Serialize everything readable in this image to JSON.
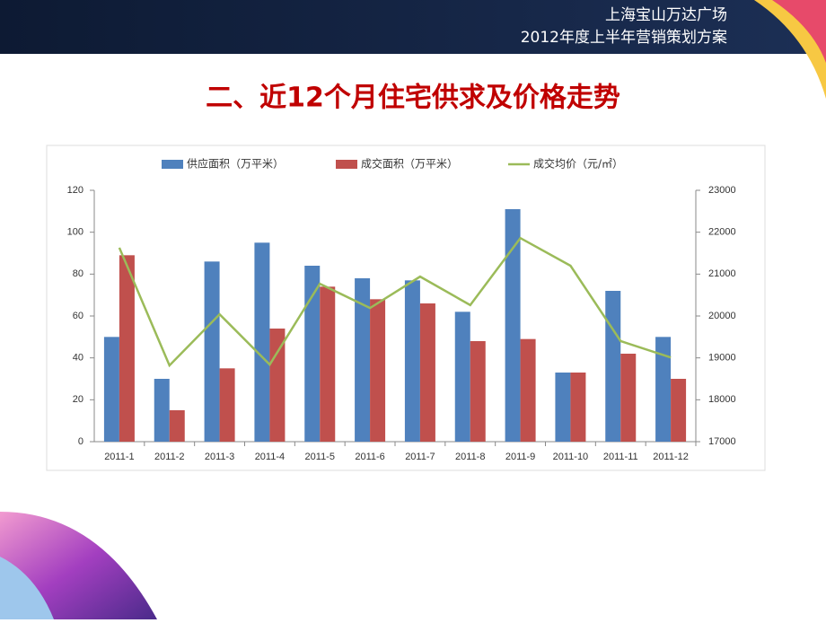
{
  "header": {
    "line1": "上海宝山万达广场",
    "line2": "2012年度上半年营销策划方案"
  },
  "title": "二、近12个月住宅供求及价格走势",
  "chart_data": {
    "type": "bar",
    "categories": [
      "2011-1",
      "2011-2",
      "2011-3",
      "2011-4",
      "2011-5",
      "2011-6",
      "2011-7",
      "2011-8",
      "2011-9",
      "2011-10",
      "2011-11",
      "2011-12"
    ],
    "series": [
      {
        "name": "供应面积（万平米）",
        "color": "#4f81bd",
        "values": [
          50,
          30,
          86,
          95,
          84,
          78,
          77,
          62,
          111,
          33,
          72,
          50
        ]
      },
      {
        "name": "成交面积（万平米）",
        "color": "#c0504d",
        "values": [
          89,
          15,
          35,
          54,
          74,
          68,
          66,
          48,
          49,
          33,
          42,
          30
        ]
      },
      {
        "name": "成交均价（元/㎡）",
        "color": "#9bbb59",
        "type": "line",
        "axis": "y2",
        "values": [
          21630,
          18820,
          20040,
          18840,
          20770,
          20190,
          20940,
          20260,
          21860,
          21200,
          19400,
          19010
        ]
      }
    ],
    "ylim": [
      0,
      120
    ],
    "yticks": [
      0,
      20,
      40,
      60,
      80,
      100,
      120
    ],
    "y2lim": [
      17000,
      23000
    ],
    "y2ticks": [
      17000,
      18000,
      19000,
      20000,
      21000,
      22000,
      23000
    ],
    "legend": "top"
  }
}
